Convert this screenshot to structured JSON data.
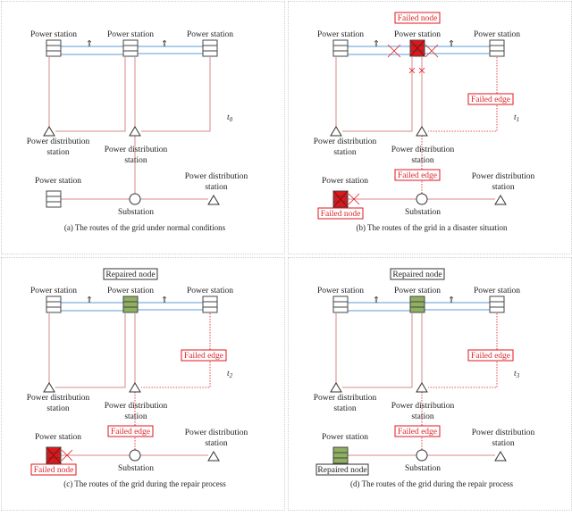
{
  "labels": {
    "power_station": "Power station",
    "distribution_line1": "Power distribution",
    "distribution_line2": "station",
    "substation": "Substation",
    "failed_node": "Failed node",
    "failed_edge": "Failed edge",
    "repaired_node": "Repaired node",
    "arrow_glyph": "⇑"
  },
  "colors": {
    "normal_line": "#d98a8a",
    "tie_line": "#5b9bd5",
    "failed": "#e0161b",
    "repaired": "#8fb060",
    "box_stroke": "#444444"
  },
  "panels": [
    {
      "caption": "(a) The routes of the grid under normal conditions",
      "time": "t",
      "time_sub": "0",
      "center_state": "normal",
      "bottom_state": "normal",
      "failed_edges": false
    },
    {
      "caption": "(b) The routes of the grid in a disaster situation",
      "time": "t",
      "time_sub": "1",
      "center_state": "failed",
      "bottom_state": "failed",
      "failed_edges": true
    },
    {
      "caption": "(c) The routes of the grid during the repair process",
      "time": "t",
      "time_sub": "2",
      "center_state": "repaired",
      "bottom_state": "failed",
      "failed_edges": true
    },
    {
      "caption": "(d) The routes of the grid during the repair process",
      "time": "t",
      "time_sub": "3",
      "center_state": "repaired",
      "bottom_state": "repaired",
      "failed_edges": true
    }
  ]
}
